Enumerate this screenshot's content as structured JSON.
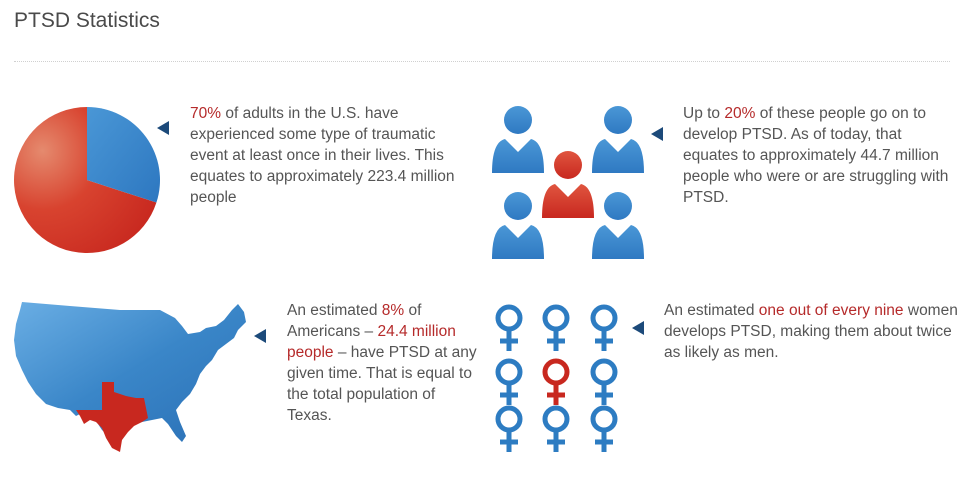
{
  "page": {
    "title": "PTSD Statistics"
  },
  "colors": {
    "blue": "#3a86c8",
    "red": "#c8281f",
    "arrow": "#1c4a7a",
    "highlight": "#b52a2a",
    "text": "#555555"
  },
  "blocks": {
    "adults": {
      "figure": "pie-chart",
      "percent": 70,
      "highlight_1": "70%",
      "text_1": " of adults in the U.S. have experienced some type of traumatic event at least once in their lives. This equates to approximately 223.4 million people"
    },
    "people": {
      "figure": "people-icons",
      "text_1": "Up to ",
      "highlight_1": "20%",
      "text_2": " of these people go on to develop PTSD. As of today, that equates to approximately 44.7 million people who were or are struggling with PTSD."
    },
    "americans": {
      "figure": "us-map-texas",
      "text_1": "An estimated ",
      "highlight_1": "8%",
      "text_2": " of Americans – ",
      "highlight_2": "24.4 million people",
      "text_3": " – have PTSD at any given time. That is equal to the total population of Texas."
    },
    "women": {
      "figure": "female-symbols",
      "text_1": "An estimated ",
      "highlight_1": "one out of every nine",
      "text_2": " women develops PTSD, making them about twice as likely as men."
    }
  }
}
